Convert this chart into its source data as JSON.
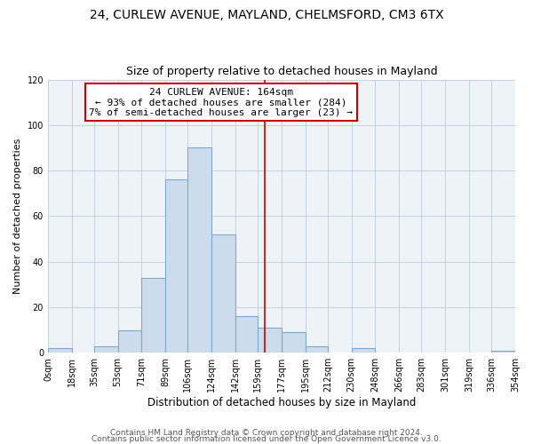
{
  "title1": "24, CURLEW AVENUE, MAYLAND, CHELMSFORD, CM3 6TX",
  "title2": "Size of property relative to detached houses in Mayland",
  "xlabel": "Distribution of detached houses by size in Mayland",
  "ylabel": "Number of detached properties",
  "bin_edges": [
    0,
    18,
    35,
    53,
    71,
    89,
    106,
    124,
    142,
    159,
    177,
    195,
    212,
    230,
    248,
    266,
    283,
    301,
    319,
    336,
    354
  ],
  "bar_heights": [
    2,
    0,
    3,
    10,
    33,
    76,
    90,
    52,
    16,
    11,
    9,
    3,
    0,
    2,
    0,
    0,
    0,
    0,
    0,
    1
  ],
  "bar_color": "#ccdcec",
  "bar_edgecolor": "#7aabcc",
  "bar_linewidth": 0.8,
  "vline_x": 164,
  "vline_color": "#cc0000",
  "vline_linewidth": 1.2,
  "annotation_title": "24 CURLEW AVENUE: 164sqm",
  "annotation_line1": "← 93% of detached houses are smaller (284)",
  "annotation_line2": "7% of semi-detached houses are larger (23) →",
  "annotation_box_edgecolor": "#cc0000",
  "annotation_box_facecolor": "#ffffff",
  "ylim": [
    0,
    120
  ],
  "yticks": [
    0,
    20,
    40,
    60,
    80,
    100,
    120
  ],
  "tick_labels": [
    "0sqm",
    "18sqm",
    "35sqm",
    "53sqm",
    "71sqm",
    "89sqm",
    "106sqm",
    "124sqm",
    "142sqm",
    "159sqm",
    "177sqm",
    "195sqm",
    "212sqm",
    "230sqm",
    "248sqm",
    "266sqm",
    "283sqm",
    "301sqm",
    "319sqm",
    "336sqm",
    "354sqm"
  ],
  "footer1": "Contains HM Land Registry data © Crown copyright and database right 2024.",
  "footer2": "Contains public sector information licensed under the Open Government Licence v3.0.",
  "background_color": "#ffffff",
  "plot_background": "#eef3f8",
  "grid_color": "#c0ccd8",
  "title1_fontsize": 10,
  "title2_fontsize": 9,
  "xlabel_fontsize": 8.5,
  "ylabel_fontsize": 8,
  "tick_fontsize": 7,
  "annotation_fontsize": 8,
  "footer_fontsize": 6.5
}
